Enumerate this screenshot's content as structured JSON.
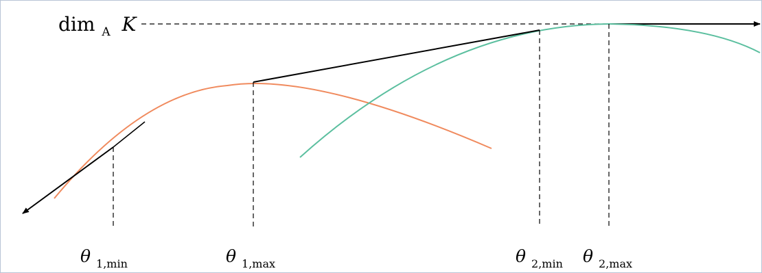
{
  "labels": {
    "dim_base": "dim",
    "dim_sub": "A",
    "dim_var": "K",
    "theta": "θ",
    "theta1min_sub": "1,min",
    "theta1max_sub": "1,max",
    "theta2min_sub": "2,min",
    "theta2max_sub": "2,max"
  },
  "colors": {
    "curve1": "#f08a5d",
    "curve2": "#5bbf9f",
    "tangent": "#000000",
    "guide": "#000000"
  }
}
